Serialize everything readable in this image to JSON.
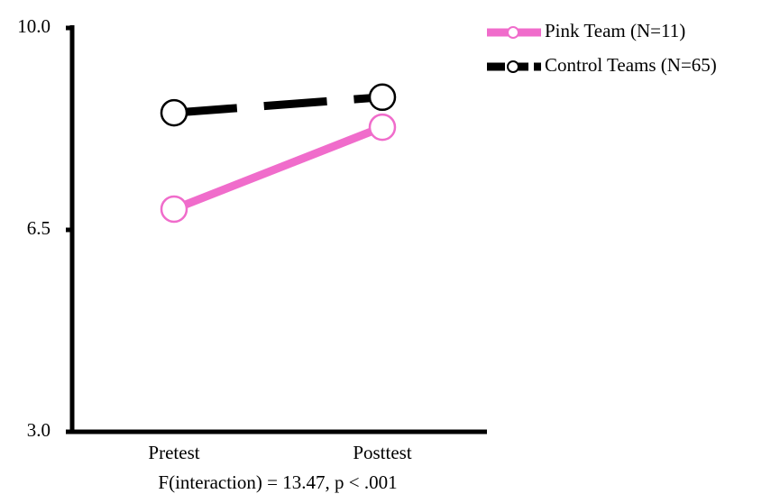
{
  "chart_data": {
    "type": "line",
    "categories": [
      "Pretest",
      "Posttest"
    ],
    "series": [
      {
        "name": "Pink Team (N=11)",
        "color": "#f06ccb",
        "dashed": false,
        "values": [
          6.86,
          8.28
        ]
      },
      {
        "name": "Control Teams (N=65)",
        "color": "#000000",
        "dashed": true,
        "values": [
          8.53,
          8.8
        ]
      }
    ],
    "ylim": [
      3,
      10
    ],
    "yticks": [
      {
        "value": 3,
        "label": "3.0"
      },
      6.5,
      {
        "value": 10,
        "label": "10.0"
      }
    ],
    "annotation": "F(interaction) = 13.47, p < .001",
    "legend": "top-right"
  }
}
